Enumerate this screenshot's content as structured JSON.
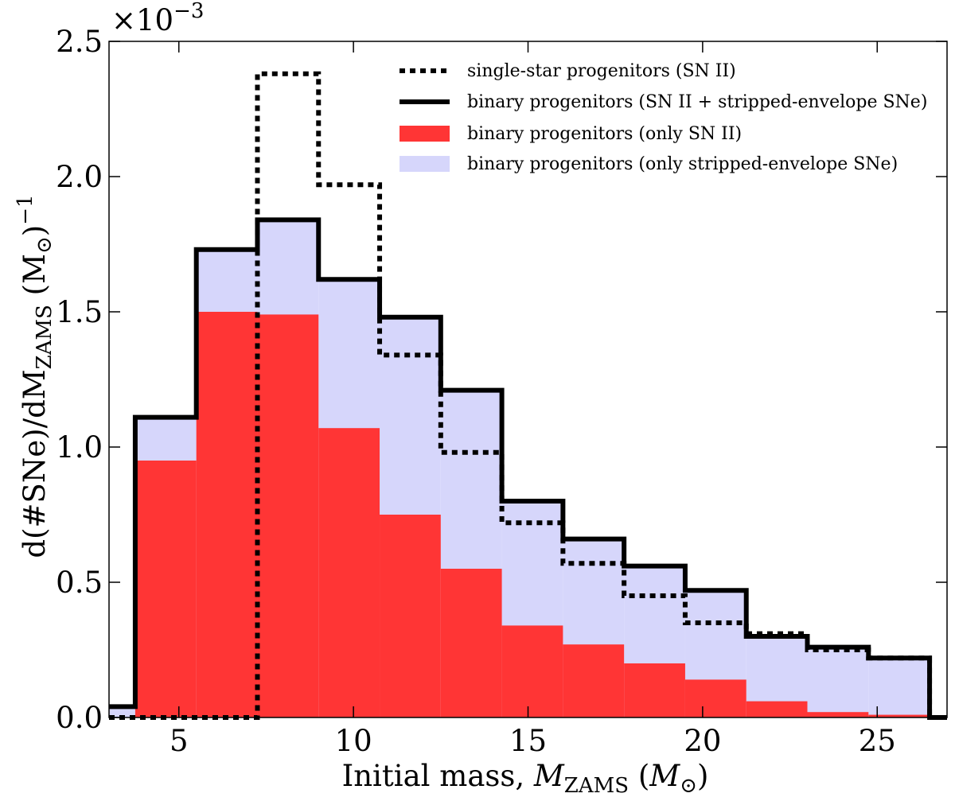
{
  "chart_data": {
    "type": "step-histogram",
    "x_axis": {
      "label_main": "Initial mass, ",
      "label_italic": "M",
      "label_sub": "ZAMS",
      "label_paren_open": " (",
      "label_unit_italic": "M",
      "label_unit_sub": "⊙",
      "label_paren_close": ")",
      "range": [
        3.0,
        27.0
      ],
      "ticks": [
        5,
        10,
        15,
        20,
        25
      ],
      "tick_labels": [
        "5",
        "10",
        "15",
        "20",
        "25"
      ]
    },
    "y_axis": {
      "label_a": "d(#SNe)/dM",
      "label_a_sub": "ZAMS",
      "label_b": " (M",
      "label_b_sub": "⊙",
      "label_b_close": ")",
      "label_b_sup": "−1",
      "range": [
        0.0,
        2.5
      ],
      "ticks": [
        0.0,
        0.5,
        1.0,
        1.5,
        2.0,
        2.5
      ],
      "tick_labels": [
        "0.0",
        "0.5",
        "1.0",
        "1.5",
        "2.0",
        "2.5"
      ],
      "multiplier_base": "×10",
      "multiplier_exp": "−3"
    },
    "bin_edges": [
      3.0,
      3.75,
      5.5,
      7.25,
      9.0,
      10.75,
      12.5,
      14.25,
      16.0,
      17.75,
      19.5,
      21.25,
      23.0,
      24.75,
      26.5,
      27.0
    ],
    "series": [
      {
        "name": "single-star progenitors (SN II)",
        "style": "dotted-step",
        "color": "#000000",
        "values": [
          0.0,
          0.0,
          0.0,
          2.38,
          1.97,
          1.34,
          0.98,
          0.72,
          0.57,
          0.45,
          0.35,
          0.31,
          0.25,
          0.22,
          0.0
        ]
      },
      {
        "name": "binary progenitors (SN II + stripped-envelope SNe)",
        "style": "solid-step",
        "color": "#000000",
        "values": [
          0.04,
          1.11,
          1.73,
          1.84,
          1.62,
          1.48,
          1.21,
          0.8,
          0.66,
          0.56,
          0.47,
          0.3,
          0.26,
          0.22,
          0.0
        ]
      },
      {
        "name": "binary progenitors (only SN II)",
        "style": "filled-bar",
        "color": "#ff3535",
        "values": [
          0.0,
          0.95,
          1.5,
          1.49,
          1.07,
          0.75,
          0.55,
          0.34,
          0.27,
          0.2,
          0.14,
          0.06,
          0.02,
          0.01,
          0.0
        ]
      },
      {
        "name": "binary progenitors (only stripped-envelope SNe)",
        "style": "filled-bar",
        "color": "#d6d6fb",
        "values": [
          0.04,
          1.11,
          1.73,
          1.84,
          1.62,
          1.48,
          1.21,
          0.8,
          0.66,
          0.56,
          0.47,
          0.3,
          0.26,
          0.22,
          0.0
        ]
      }
    ],
    "legend_position": "top-right",
    "grid": false
  }
}
